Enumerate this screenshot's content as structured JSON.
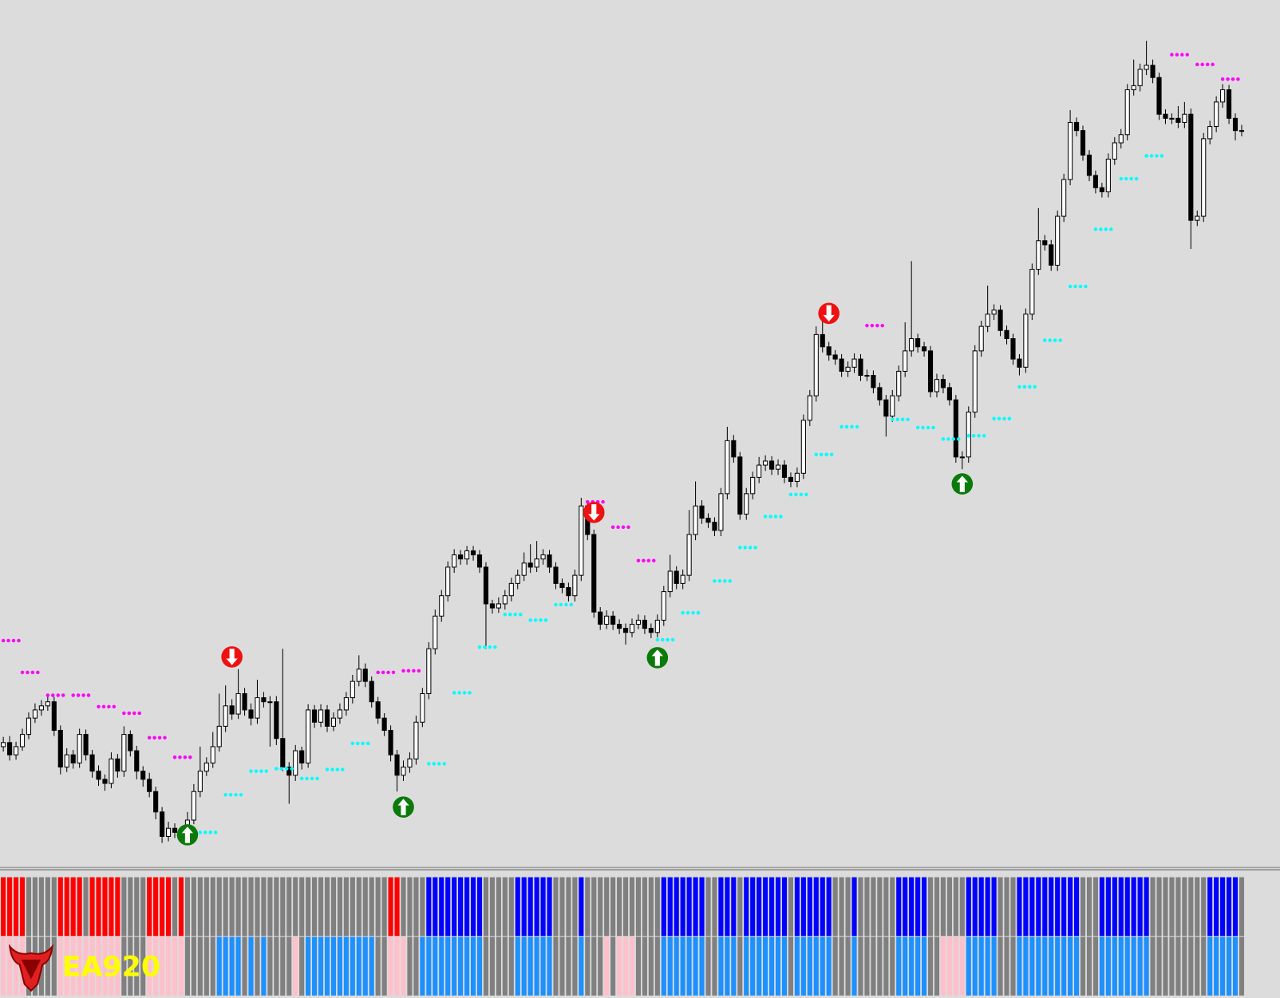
{
  "chart_data": {
    "type": "candlestick",
    "ylim": [
      0,
      1065
    ],
    "up_color": "#ffffff",
    "down_color": "#000000",
    "candles": [
      [
        150,
        162,
        144,
        155
      ],
      [
        155,
        163,
        133,
        140
      ],
      [
        140,
        156,
        134,
        150
      ],
      [
        150,
        172,
        145,
        165
      ],
      [
        165,
        192,
        159,
        185
      ],
      [
        185,
        203,
        179,
        195
      ],
      [
        195,
        207,
        188,
        200
      ],
      [
        200,
        212,
        194,
        205
      ],
      [
        205,
        211,
        163,
        170
      ],
      [
        170,
        176,
        116,
        125
      ],
      [
        125,
        148,
        119,
        140
      ],
      [
        140,
        146,
        123,
        130
      ],
      [
        130,
        172,
        124,
        165
      ],
      [
        165,
        171,
        133,
        140
      ],
      [
        140,
        146,
        112,
        120
      ],
      [
        120,
        127,
        102,
        110
      ],
      [
        110,
        116,
        96,
        105
      ],
      [
        105,
        143,
        99,
        135
      ],
      [
        135,
        141,
        112,
        120
      ],
      [
        120,
        175,
        113,
        165
      ],
      [
        165,
        170,
        138,
        145
      ],
      [
        145,
        151,
        110,
        120
      ],
      [
        120,
        126,
        101,
        110
      ],
      [
        110,
        118,
        88,
        95
      ],
      [
        95,
        101,
        61,
        70
      ],
      [
        70,
        76,
        32,
        40
      ],
      [
        40,
        58,
        34,
        50
      ],
      [
        50,
        56,
        38,
        45
      ],
      [
        45,
        52,
        38,
        45
      ],
      [
        45,
        70,
        40,
        60
      ],
      [
        60,
        104,
        55,
        95
      ],
      [
        95,
        150,
        88,
        120
      ],
      [
        120,
        137,
        114,
        130
      ],
      [
        130,
        168,
        124,
        150
      ],
      [
        150,
        215,
        144,
        175
      ],
      [
        175,
        225,
        168,
        200
      ],
      [
        200,
        208,
        183,
        190
      ],
      [
        190,
        245,
        184,
        215
      ],
      [
        215,
        222,
        188,
        195
      ],
      [
        195,
        203,
        176,
        185
      ],
      [
        185,
        232,
        178,
        210
      ],
      [
        210,
        217,
        198,
        205
      ],
      [
        205,
        212,
        150,
        205
      ],
      [
        205,
        212,
        152,
        160
      ],
      [
        160,
        270,
        120,
        125
      ],
      [
        125,
        131,
        80,
        115
      ],
      [
        115,
        152,
        108,
        145
      ],
      [
        145,
        150,
        122,
        130
      ],
      [
        130,
        202,
        124,
        195
      ],
      [
        195,
        201,
        173,
        180
      ],
      [
        180,
        202,
        174,
        195
      ],
      [
        195,
        201,
        168,
        175
      ],
      [
        175,
        192,
        169,
        185
      ],
      [
        185,
        203,
        178,
        195
      ],
      [
        195,
        217,
        188,
        210
      ],
      [
        210,
        238,
        203,
        230
      ],
      [
        230,
        262,
        224,
        245
      ],
      [
        245,
        252,
        223,
        230
      ],
      [
        230,
        236,
        198,
        205
      ],
      [
        205,
        211,
        178,
        185
      ],
      [
        185,
        191,
        163,
        170
      ],
      [
        170,
        176,
        132,
        140
      ],
      [
        140,
        146,
        95,
        115
      ],
      [
        115,
        133,
        108,
        125
      ],
      [
        125,
        143,
        118,
        135
      ],
      [
        135,
        188,
        128,
        180
      ],
      [
        180,
        222,
        174,
        215
      ],
      [
        215,
        278,
        208,
        270
      ],
      [
        270,
        318,
        263,
        310
      ],
      [
        310,
        342,
        303,
        335
      ],
      [
        335,
        377,
        328,
        370
      ],
      [
        370,
        392,
        363,
        385
      ],
      [
        385,
        391,
        373,
        380
      ],
      [
        380,
        396,
        373,
        390
      ],
      [
        390,
        396,
        378,
        385
      ],
      [
        385,
        391,
        363,
        370
      ],
      [
        370,
        376,
        270,
        325
      ],
      [
        325,
        330,
        313,
        320
      ],
      [
        320,
        333,
        314,
        325
      ],
      [
        325,
        342,
        318,
        335
      ],
      [
        335,
        357,
        328,
        350
      ],
      [
        350,
        367,
        343,
        360
      ],
      [
        360,
        388,
        353,
        375
      ],
      [
        375,
        398,
        363,
        370
      ],
      [
        370,
        402,
        364,
        380
      ],
      [
        380,
        392,
        373,
        385
      ],
      [
        385,
        391,
        363,
        370
      ],
      [
        370,
        376,
        343,
        350
      ],
      [
        350,
        356,
        338,
        345
      ],
      [
        345,
        351,
        328,
        335
      ],
      [
        335,
        367,
        328,
        360
      ],
      [
        360,
        455,
        353,
        445
      ],
      [
        445,
        452,
        403,
        410
      ],
      [
        410,
        416,
        308,
        315
      ],
      [
        315,
        321,
        293,
        300
      ],
      [
        300,
        317,
        294,
        310
      ],
      [
        310,
        316,
        293,
        300
      ],
      [
        300,
        306,
        288,
        295
      ],
      [
        295,
        301,
        275,
        290
      ],
      [
        290,
        307,
        284,
        300
      ],
      [
        300,
        312,
        294,
        305
      ],
      [
        305,
        311,
        288,
        295
      ],
      [
        295,
        301,
        283,
        290
      ],
      [
        290,
        312,
        284,
        305
      ],
      [
        305,
        347,
        298,
        340
      ],
      [
        340,
        385,
        333,
        365
      ],
      [
        365,
        371,
        343,
        350
      ],
      [
        350,
        367,
        343,
        360
      ],
      [
        360,
        440,
        353,
        410
      ],
      [
        410,
        475,
        403,
        445
      ],
      [
        445,
        452,
        423,
        430
      ],
      [
        430,
        436,
        418,
        425
      ],
      [
        425,
        431,
        408,
        415
      ],
      [
        415,
        467,
        408,
        460
      ],
      [
        460,
        542,
        453,
        525
      ],
      [
        525,
        532,
        498,
        505
      ],
      [
        505,
        511,
        428,
        435
      ],
      [
        435,
        467,
        428,
        460
      ],
      [
        460,
        487,
        453,
        480
      ],
      [
        480,
        505,
        473,
        495
      ],
      [
        495,
        507,
        488,
        500
      ],
      [
        500,
        506,
        483,
        490
      ],
      [
        490,
        502,
        483,
        495
      ],
      [
        495,
        501,
        473,
        480
      ],
      [
        480,
        486,
        468,
        475
      ],
      [
        475,
        492,
        468,
        485
      ],
      [
        485,
        557,
        478,
        550
      ],
      [
        550,
        587,
        543,
        580
      ],
      [
        580,
        665,
        573,
        655
      ],
      [
        655,
        680,
        633,
        640
      ],
      [
        640,
        646,
        623,
        630
      ],
      [
        630,
        636,
        618,
        625
      ],
      [
        625,
        631,
        603,
        610
      ],
      [
        610,
        622,
        603,
        615
      ],
      [
        615,
        632,
        608,
        625
      ],
      [
        625,
        631,
        598,
        605
      ],
      [
        605,
        612,
        598,
        605
      ],
      [
        605,
        611,
        583,
        590
      ],
      [
        590,
        596,
        568,
        575
      ],
      [
        575,
        581,
        530,
        555
      ],
      [
        555,
        587,
        548,
        580
      ],
      [
        580,
        617,
        573,
        610
      ],
      [
        610,
        670,
        603,
        635
      ],
      [
        635,
        745,
        628,
        650
      ],
      [
        650,
        656,
        633,
        640
      ],
      [
        640,
        646,
        628,
        635
      ],
      [
        635,
        641,
        578,
        585
      ],
      [
        585,
        607,
        578,
        600
      ],
      [
        600,
        606,
        583,
        590
      ],
      [
        590,
        596,
        568,
        575
      ],
      [
        575,
        581,
        498,
        505
      ],
      [
        505,
        512,
        490,
        505
      ],
      [
        505,
        567,
        498,
        560
      ],
      [
        560,
        642,
        553,
        635
      ],
      [
        635,
        672,
        628,
        665
      ],
      [
        665,
        715,
        658,
        680
      ],
      [
        680,
        692,
        673,
        685
      ],
      [
        685,
        691,
        653,
        660
      ],
      [
        660,
        666,
        643,
        650
      ],
      [
        650,
        656,
        618,
        625
      ],
      [
        625,
        631,
        605,
        615
      ],
      [
        615,
        687,
        608,
        680
      ],
      [
        680,
        742,
        673,
        735
      ],
      [
        735,
        810,
        728,
        770
      ],
      [
        770,
        777,
        758,
        765
      ],
      [
        765,
        771,
        733,
        740
      ],
      [
        740,
        807,
        733,
        800
      ],
      [
        800,
        852,
        793,
        845
      ],
      [
        845,
        930,
        838,
        915
      ],
      [
        915,
        921,
        898,
        905
      ],
      [
        905,
        911,
        868,
        875
      ],
      [
        875,
        881,
        843,
        850
      ],
      [
        850,
        856,
        828,
        835
      ],
      [
        835,
        841,
        823,
        830
      ],
      [
        830,
        877,
        823,
        870
      ],
      [
        870,
        897,
        863,
        890
      ],
      [
        890,
        907,
        883,
        900
      ],
      [
        900,
        962,
        893,
        955
      ],
      [
        955,
        992,
        948,
        960
      ],
      [
        960,
        987,
        953,
        980
      ],
      [
        980,
        1015,
        973,
        985
      ],
      [
        985,
        992,
        963,
        970
      ],
      [
        970,
        976,
        918,
        925
      ],
      [
        925,
        931,
        913,
        920
      ],
      [
        920,
        926,
        913,
        920
      ],
      [
        920,
        935,
        908,
        915
      ],
      [
        915,
        940,
        908,
        925
      ],
      [
        925,
        932,
        760,
        795
      ],
      [
        795,
        807,
        788,
        800
      ],
      [
        800,
        902,
        793,
        895
      ],
      [
        895,
        917,
        888,
        910
      ],
      [
        910,
        947,
        903,
        940
      ],
      [
        940,
        962,
        933,
        955
      ],
      [
        955,
        961,
        913,
        920
      ],
      [
        920,
        926,
        893,
        905
      ],
      [
        905,
        912,
        898,
        905
      ]
    ],
    "resistance": {
      "color": "#ff00ff",
      "x": [
        0,
        3,
        7,
        11,
        15,
        19,
        23,
        27,
        59,
        63,
        92,
        96,
        100,
        136,
        184,
        188,
        192
      ],
      "values": [
        280,
        241,
        213,
        213,
        199,
        191,
        161,
        137,
        241,
        243,
        450,
        419,
        378,
        666,
        998,
        986,
        968
      ]
    },
    "support": {
      "color": "#00ffff",
      "x": [
        31,
        35,
        39,
        43,
        47,
        51,
        55,
        67,
        71,
        75,
        79,
        83,
        87,
        103,
        107,
        112,
        116,
        120,
        124,
        128,
        132,
        140,
        144,
        148,
        152,
        156,
        160,
        164,
        168,
        172,
        176,
        180
      ],
      "values": [
        45,
        91,
        120,
        123,
        111,
        122,
        154,
        129,
        216,
        272,
        312,
        305,
        324,
        281,
        314,
        353,
        394,
        432,
        459,
        508,
        542,
        551,
        541,
        527,
        531,
        552,
        591,
        648,
        714,
        784,
        846,
        874
      ]
    },
    "sell_signals": {
      "color": "#ee1111",
      "x": [
        36,
        93,
        130
      ],
      "values": [
        260,
        437,
        681
      ]
    },
    "buy_signals": {
      "color": "#0a7a0a",
      "x": [
        29,
        63,
        103,
        151
      ],
      "values": [
        42,
        76,
        259,
        472
      ]
    },
    "indicator_upper": {
      "colors": [
        "#ff0000",
        "#808080",
        "#0000ff"
      ],
      "values": [
        -1,
        -1,
        -1,
        -1,
        0,
        0,
        0,
        0,
        0,
        -1,
        -1,
        -1,
        -1,
        0,
        -1,
        -1,
        -1,
        -1,
        -1,
        0,
        0,
        0,
        0,
        -1,
        -1,
        -1,
        -1,
        0,
        -1,
        0,
        0,
        0,
        0,
        0,
        0,
        0,
        0,
        0,
        0,
        0,
        0,
        0,
        0,
        0,
        0,
        0,
        0,
        0,
        0,
        0,
        0,
        0,
        0,
        0,
        0,
        0,
        0,
        0,
        0,
        0,
        0,
        -1,
        -1,
        0,
        0,
        0,
        0,
        1,
        1,
        1,
        1,
        1,
        1,
        1,
        1,
        1,
        0,
        0,
        0,
        0,
        0,
        1,
        1,
        1,
        1,
        1,
        1,
        0,
        0,
        0,
        0,
        1,
        0,
        0,
        0,
        0,
        0,
        0,
        0,
        0,
        0,
        0,
        0,
        0,
        1,
        1,
        1,
        1,
        1,
        1,
        1,
        0,
        0,
        1,
        1,
        1,
        0,
        1,
        1,
        1,
        1,
        1,
        1,
        1,
        0,
        1,
        1,
        1,
        1,
        1,
        1,
        0,
        0,
        0,
        1,
        0,
        0,
        0,
        0,
        0,
        0,
        1,
        1,
        1,
        1,
        1,
        0,
        0,
        0,
        0,
        0,
        0,
        1,
        1,
        1,
        1,
        1,
        0,
        0,
        0,
        1,
        1,
        1,
        1,
        1,
        1,
        1,
        1,
        1,
        1,
        0,
        0,
        0,
        1,
        1,
        1,
        1,
        1,
        1,
        1,
        1,
        0,
        0,
        0,
        0,
        0,
        0,
        0,
        0,
        0,
        1,
        1,
        1,
        1,
        1,
        0
      ]
    },
    "indicator_lower": {
      "colors": [
        "#ffc0cb",
        "#808080",
        "#1e90ff"
      ],
      "values": [
        -1,
        -1,
        -1,
        -1,
        0,
        0,
        0,
        0,
        0,
        -1,
        -1,
        -1,
        -1,
        -1,
        -1,
        -1,
        -1,
        -1,
        -1,
        0,
        0,
        0,
        0,
        -1,
        -1,
        -1,
        -1,
        -1,
        -1,
        0,
        0,
        0,
        0,
        0,
        1,
        1,
        1,
        1,
        0,
        1,
        0,
        1,
        0,
        0,
        0,
        0,
        -1,
        0,
        1,
        1,
        1,
        1,
        1,
        1,
        1,
        1,
        1,
        1,
        1,
        0,
        0,
        -1,
        -1,
        -1,
        0,
        0,
        1,
        1,
        1,
        1,
        1,
        1,
        1,
        1,
        1,
        1,
        0,
        0,
        0,
        0,
        0,
        1,
        1,
        1,
        1,
        1,
        1,
        0,
        0,
        0,
        0,
        1,
        0,
        0,
        0,
        -1,
        0,
        -1,
        -1,
        -1,
        0,
        0,
        0,
        0,
        1,
        1,
        1,
        1,
        1,
        1,
        1,
        0,
        0,
        1,
        1,
        1,
        0,
        1,
        1,
        1,
        1,
        1,
        1,
        1,
        0,
        1,
        1,
        1,
        1,
        1,
        1,
        0,
        0,
        0,
        1,
        0,
        0,
        0,
        0,
        0,
        0,
        1,
        1,
        1,
        1,
        1,
        0,
        0,
        -1,
        -1,
        -1,
        -1,
        1,
        1,
        1,
        1,
        1,
        0,
        0,
        0,
        1,
        1,
        1,
        1,
        1,
        1,
        1,
        1,
        1,
        1,
        0,
        0,
        0,
        1,
        1,
        1,
        1,
        1,
        1,
        1,
        1,
        0,
        0,
        0,
        0,
        0,
        0,
        0,
        0,
        0,
        1,
        1,
        1,
        1,
        1,
        0
      ]
    },
    "logo_text": "EA920"
  }
}
